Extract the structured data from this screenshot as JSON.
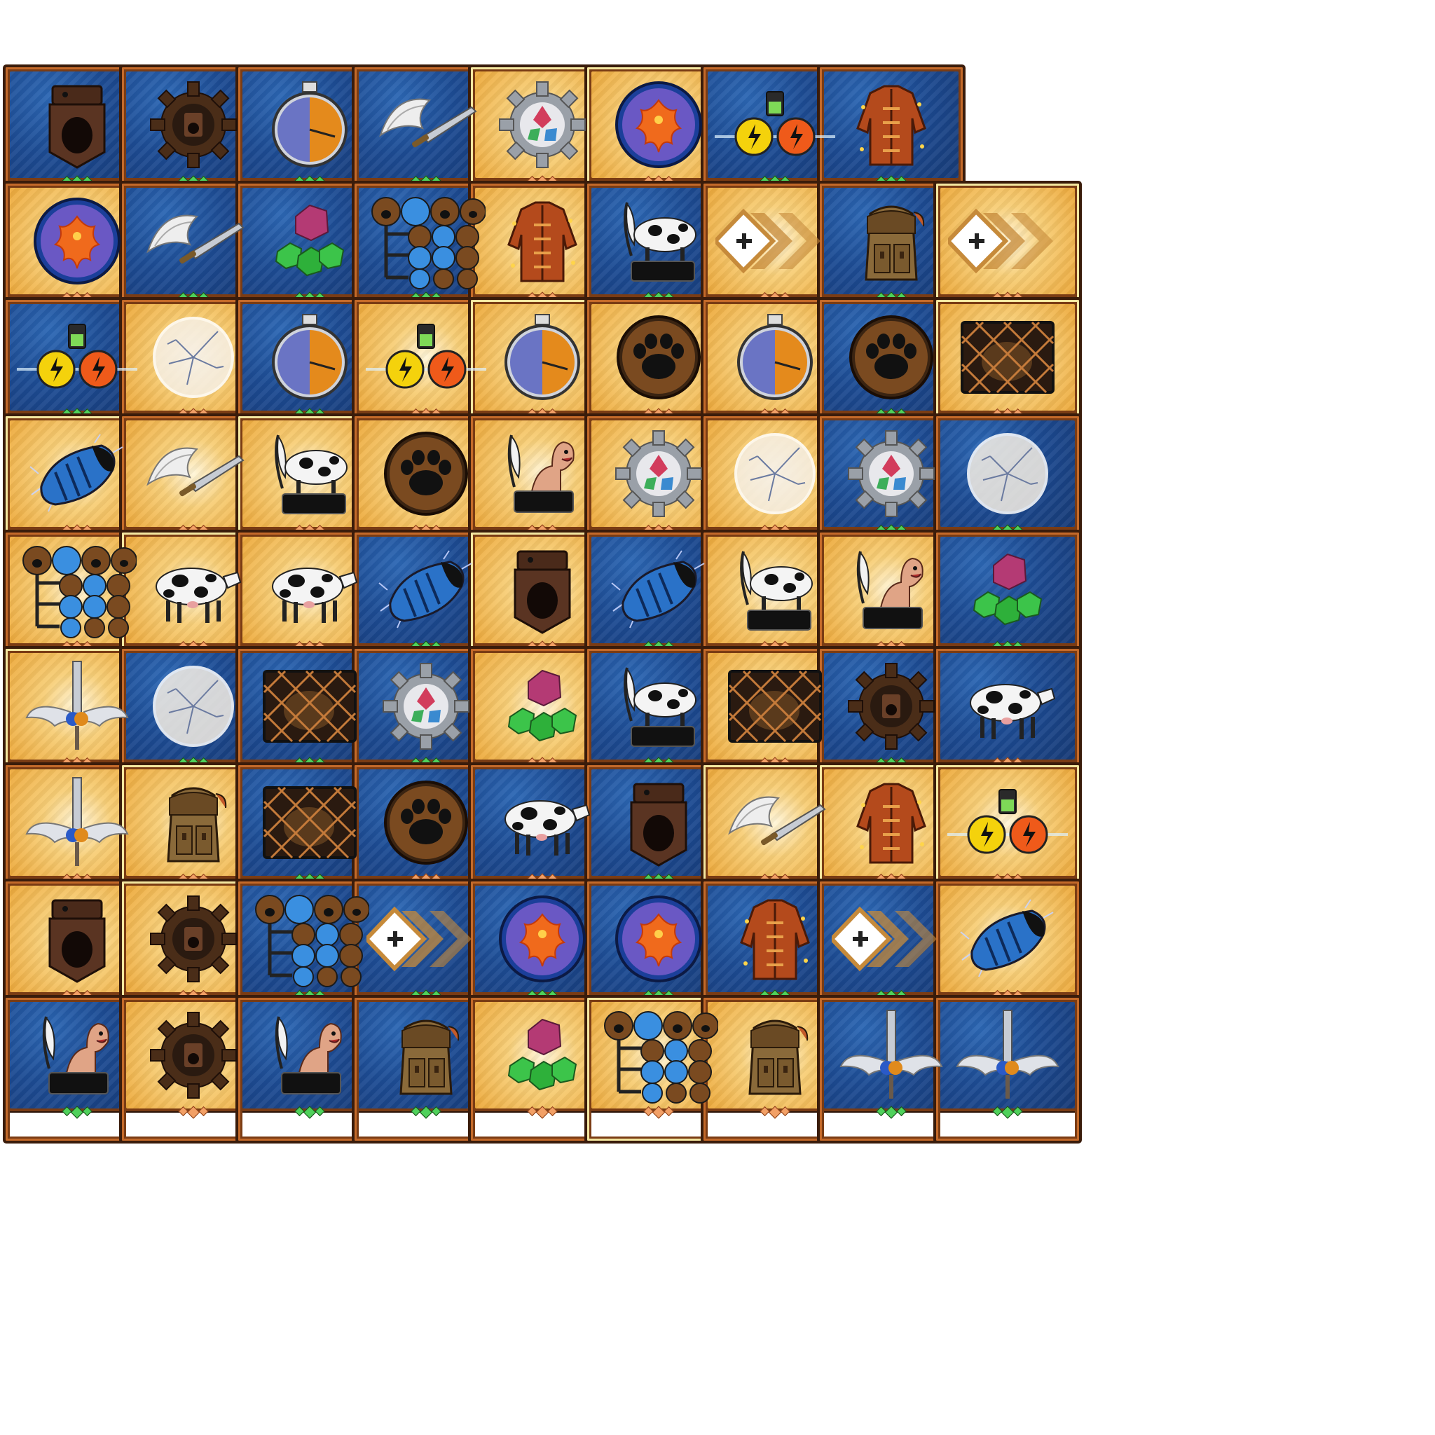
{
  "sheet": {
    "title": "",
    "rows": [
      [
        {
          "icon": "holster-icon",
          "bg": "blue",
          "gems": "green",
          "frame": "bronze"
        },
        {
          "icon": "gear-holster-icon",
          "bg": "blue",
          "gems": "green",
          "frame": "bronze"
        },
        {
          "icon": "stopwatch-icon",
          "bg": "blue",
          "gems": "green",
          "frame": "bronze"
        },
        {
          "icon": "winged-sword-icon",
          "bg": "blue",
          "gems": "green",
          "frame": "bronze"
        },
        {
          "icon": "gear-gem-icon",
          "bg": "gold",
          "gems": "orange",
          "frame": "rare"
        },
        {
          "icon": "phoenix-icon",
          "bg": "gold",
          "gems": "orange",
          "frame": "rare"
        },
        {
          "icon": "battery-lightning-icon",
          "bg": "blue",
          "gems": "green",
          "frame": "bronze"
        },
        {
          "icon": "jacket-icon",
          "bg": "blue",
          "gems": "green",
          "frame": "bronze"
        }
      ],
      [
        {
          "icon": "phoenix-icon",
          "bg": "gold",
          "gems": "orange",
          "frame": "bronze"
        },
        {
          "icon": "winged-sword-icon",
          "bg": "blue",
          "gems": "green",
          "frame": "bronze"
        },
        {
          "icon": "gem-cluster-icon",
          "bg": "blue",
          "gems": "green",
          "frame": "bronze"
        },
        {
          "icon": "paw-tree-icon",
          "bg": "blue",
          "gems": "green",
          "frame": "bronze"
        },
        {
          "icon": "jacket-icon",
          "bg": "gold",
          "gems": "orange",
          "frame": "bronze"
        },
        {
          "icon": "cow-feather-icon",
          "bg": "blue",
          "gems": "green",
          "frame": "bronze"
        },
        {
          "icon": "plus-chevrons-icon",
          "bg": "gold",
          "gems": "orange",
          "frame": "bronze"
        },
        {
          "icon": "backpack-icon",
          "bg": "blue",
          "gems": "green",
          "frame": "bronze"
        },
        {
          "icon": "plus-chevrons-icon",
          "bg": "gold",
          "gems": "orange",
          "frame": "rare"
        }
      ],
      [
        {
          "icon": "battery-lightning-icon",
          "bg": "blue",
          "gems": "green",
          "frame": "bronze"
        },
        {
          "icon": "cracked-orb-icon",
          "bg": "gold",
          "gems": "orange",
          "frame": "bronze"
        },
        {
          "icon": "stopwatch-icon",
          "bg": "blue",
          "gems": "green",
          "frame": "bronze"
        },
        {
          "icon": "battery-lightning-icon",
          "bg": "gold",
          "gems": "orange",
          "frame": "bronze"
        },
        {
          "icon": "stopwatch-icon",
          "bg": "gold",
          "gems": "orange",
          "frame": "rare"
        },
        {
          "icon": "paw-orb-icon",
          "bg": "gold",
          "gems": "orange",
          "frame": "bronze"
        },
        {
          "icon": "stopwatch-icon",
          "bg": "gold",
          "gems": "orange",
          "frame": "bronze"
        },
        {
          "icon": "paw-orb-icon",
          "bg": "blue",
          "gems": "green",
          "frame": "bronze"
        },
        {
          "icon": "net-trap-icon",
          "bg": "gold",
          "gems": "orange",
          "frame": "rare"
        }
      ],
      [
        {
          "icon": "charged-cocoon-icon",
          "bg": "gold",
          "gems": "orange",
          "frame": "rare"
        },
        {
          "icon": "winged-sword-icon",
          "bg": "gold",
          "gems": "orange",
          "frame": "bronze"
        },
        {
          "icon": "cow-feather-icon",
          "bg": "gold",
          "gems": "orange",
          "frame": "rare"
        },
        {
          "icon": "paw-orb-icon",
          "bg": "gold",
          "gems": "orange",
          "frame": "bronze"
        },
        {
          "icon": "worm-feather-icon",
          "bg": "gold",
          "gems": "orange",
          "frame": "bronze"
        },
        {
          "icon": "gear-gem-icon",
          "bg": "gold",
          "gems": "orange",
          "frame": "bronze"
        },
        {
          "icon": "cracked-orb-icon",
          "bg": "gold",
          "gems": "orange",
          "frame": "bronze"
        },
        {
          "icon": "gear-gem-icon",
          "bg": "blue",
          "gems": "green",
          "frame": "bronze"
        },
        {
          "icon": "cracked-orb-icon",
          "bg": "blue",
          "gems": "green",
          "frame": "bronze"
        }
      ],
      [
        {
          "icon": "paw-tree-icon",
          "bg": "gold",
          "gems": "orange",
          "frame": "bronze"
        },
        {
          "icon": "cow-icon",
          "bg": "gold",
          "gems": "orange",
          "frame": "rare"
        },
        {
          "icon": "cow-icon",
          "bg": "gold",
          "gems": "orange",
          "frame": "bronze"
        },
        {
          "icon": "charged-cocoon-icon",
          "bg": "blue",
          "gems": "green",
          "frame": "bronze"
        },
        {
          "icon": "holster-icon",
          "bg": "gold",
          "gems": "orange",
          "frame": "rare"
        },
        {
          "icon": "charged-cocoon-icon",
          "bg": "blue",
          "gems": "green",
          "frame": "bronze"
        },
        {
          "icon": "cow-feather-icon",
          "bg": "gold",
          "gems": "orange",
          "frame": "bronze"
        },
        {
          "icon": "worm-feather-icon",
          "bg": "gold",
          "gems": "orange",
          "frame": "bronze"
        },
        {
          "icon": "gem-cluster-icon",
          "bg": "blue",
          "gems": "green",
          "frame": "bronze"
        }
      ],
      [
        {
          "icon": "winged-blade-icon",
          "bg": "gold",
          "gems": "orange",
          "frame": "rare"
        },
        {
          "icon": "cracked-orb-icon",
          "bg": "blue",
          "gems": "green",
          "frame": "bronze"
        },
        {
          "icon": "net-trap-icon",
          "bg": "blue",
          "gems": "green",
          "frame": "bronze"
        },
        {
          "icon": "gear-gem-icon",
          "bg": "blue",
          "gems": "green",
          "frame": "bronze"
        },
        {
          "icon": "gem-cluster-icon",
          "bg": "gold",
          "gems": "orange",
          "frame": "bronze"
        },
        {
          "icon": "cow-feather-icon",
          "bg": "blue",
          "gems": "green",
          "frame": "bronze"
        },
        {
          "icon": "net-trap-icon",
          "bg": "gold",
          "gems": "orange",
          "frame": "bronze"
        },
        {
          "icon": "gear-holster-icon",
          "bg": "blue",
          "gems": "green",
          "frame": "bronze"
        },
        {
          "icon": "cow-icon",
          "bg": "blue",
          "gems": "orange",
          "frame": "bronze"
        }
      ],
      [
        {
          "icon": "winged-blade-icon",
          "bg": "gold",
          "gems": "orange",
          "frame": "bronze"
        },
        {
          "icon": "backpack-icon",
          "bg": "gold",
          "gems": "orange",
          "frame": "rare"
        },
        {
          "icon": "net-trap-icon",
          "bg": "blue",
          "gems": "green",
          "frame": "bronze"
        },
        {
          "icon": "paw-orb-icon",
          "bg": "blue",
          "gems": "orange",
          "frame": "bronze"
        },
        {
          "icon": "cow-icon",
          "bg": "blue",
          "gems": "orange",
          "frame": "bronze"
        },
        {
          "icon": "holster-icon",
          "bg": "blue",
          "gems": "green",
          "frame": "bronze"
        },
        {
          "icon": "winged-sword-icon",
          "bg": "gold",
          "gems": "orange",
          "frame": "rare"
        },
        {
          "icon": "jacket-icon",
          "bg": "gold",
          "gems": "orange",
          "frame": "rare"
        },
        {
          "icon": "battery-lightning-icon",
          "bg": "gold",
          "gems": "orange",
          "frame": "rare"
        }
      ],
      [
        {
          "icon": "holster-icon",
          "bg": "gold",
          "gems": "orange",
          "frame": "bronze"
        },
        {
          "icon": "gear-holster-icon",
          "bg": "gold",
          "gems": "orange",
          "frame": "rare"
        },
        {
          "icon": "paw-tree-icon",
          "bg": "blue",
          "gems": "green",
          "frame": "bronze"
        },
        {
          "icon": "plus-chevrons-icon",
          "bg": "blue",
          "gems": "green",
          "frame": "bronze"
        },
        {
          "icon": "phoenix-icon",
          "bg": "blue",
          "gems": "green",
          "frame": "bronze"
        },
        {
          "icon": "phoenix-icon",
          "bg": "blue",
          "gems": "green",
          "frame": "bronze"
        },
        {
          "icon": "jacket-icon",
          "bg": "blue",
          "gems": "green",
          "frame": "bronze"
        },
        {
          "icon": "plus-chevrons-icon",
          "bg": "blue",
          "gems": "green",
          "frame": "bronze"
        },
        {
          "icon": "charged-cocoon-icon",
          "bg": "gold",
          "gems": "orange",
          "frame": "bronze"
        }
      ],
      [
        {
          "icon": "worm-feather-icon",
          "bg": "blue",
          "gems": "green",
          "frame": "bronze"
        },
        {
          "icon": "gear-holster-icon",
          "bg": "gold",
          "gems": "orange",
          "frame": "bronze"
        },
        {
          "icon": "worm-feather-icon",
          "bg": "blue",
          "gems": "green",
          "frame": "bronze"
        },
        {
          "icon": "backpack-icon",
          "bg": "blue",
          "gems": "green",
          "frame": "bronze"
        },
        {
          "icon": "gem-cluster-icon",
          "bg": "gold",
          "gems": "orange",
          "frame": "bronze"
        },
        {
          "icon": "paw-tree-icon",
          "bg": "gold",
          "gems": "orange",
          "frame": "rare"
        },
        {
          "icon": "backpack-icon",
          "bg": "gold",
          "gems": "orange",
          "frame": "bronze"
        },
        {
          "icon": "winged-blade-icon",
          "bg": "blue",
          "gems": "green",
          "frame": "bronze"
        },
        {
          "icon": "winged-blade-icon",
          "bg": "blue",
          "gems": "green",
          "frame": "bronze"
        }
      ]
    ]
  },
  "colors": {
    "frame_outer": "#3a1c0b",
    "frame_inner": "#c46a2a",
    "rare_inner": "#f4e7a0",
    "gem_green": "#4fd15b",
    "gem_orange": "#f2a066"
  }
}
